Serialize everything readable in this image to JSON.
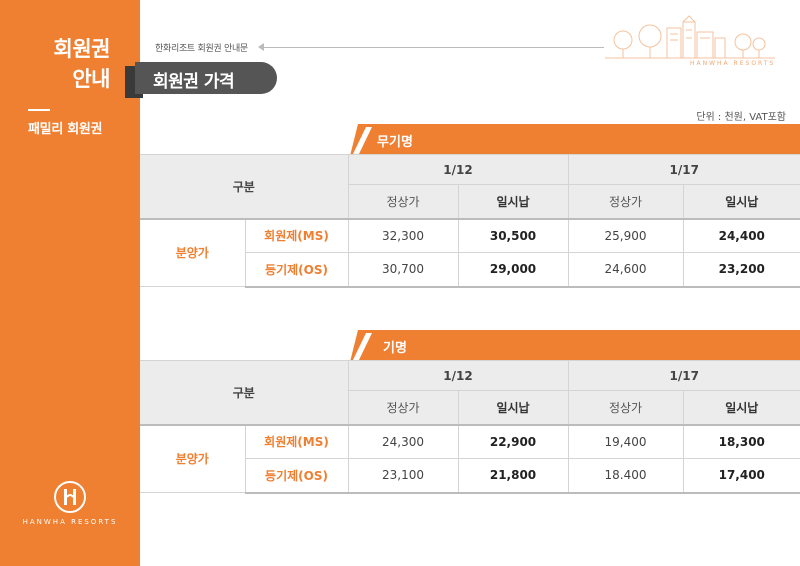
{
  "sidebar": {
    "title_line1": "회원권",
    "title_line2": "안내",
    "subtitle": "패밀리 회원권",
    "logo_text": "HANWHA RESORTS",
    "bg_color": "#ef7f31"
  },
  "header": {
    "breadcrumb": "한화리조트 회원권 안내문",
    "title": "회원권 가격",
    "brand_text": "HANWHA RESORTS",
    "unit_note": "단위 : 천원, VAT포함"
  },
  "tables": [
    {
      "band_label": "무기명",
      "col_group": "구분",
      "period_1": "1/12",
      "period_2": "1/17",
      "col_regular": "정상가",
      "col_lump": "일시납",
      "row_group": "분양가",
      "rows": [
        {
          "label": "회원제(MS)",
          "p1_regular": "32,300",
          "p1_lump": "30,500",
          "p2_regular": "25,900",
          "p2_lump": "24,400"
        },
        {
          "label": "등기제(OS)",
          "p1_regular": "30,700",
          "p1_lump": "29,000",
          "p2_regular": "24,600",
          "p2_lump": "23,200"
        }
      ]
    },
    {
      "band_label": "기명",
      "col_group": "구분",
      "period_1": "1/12",
      "period_2": "1/17",
      "col_regular": "정상가",
      "col_lump": "일시납",
      "row_group": "분양가",
      "rows": [
        {
          "label": "회원제(MS)",
          "p1_regular": "24,300",
          "p1_lump": "22,900",
          "p2_regular": "19,400",
          "p2_lump": "18,300"
        },
        {
          "label": "등기제(OS)",
          "p1_regular": "23,100",
          "p1_lump": "21,800",
          "p2_regular": "18.400",
          "p2_lump": "17,400"
        }
      ]
    }
  ],
  "colors": {
    "accent": "#ef7f31",
    "title_pill": "#555556",
    "header_bg": "#ececec"
  }
}
